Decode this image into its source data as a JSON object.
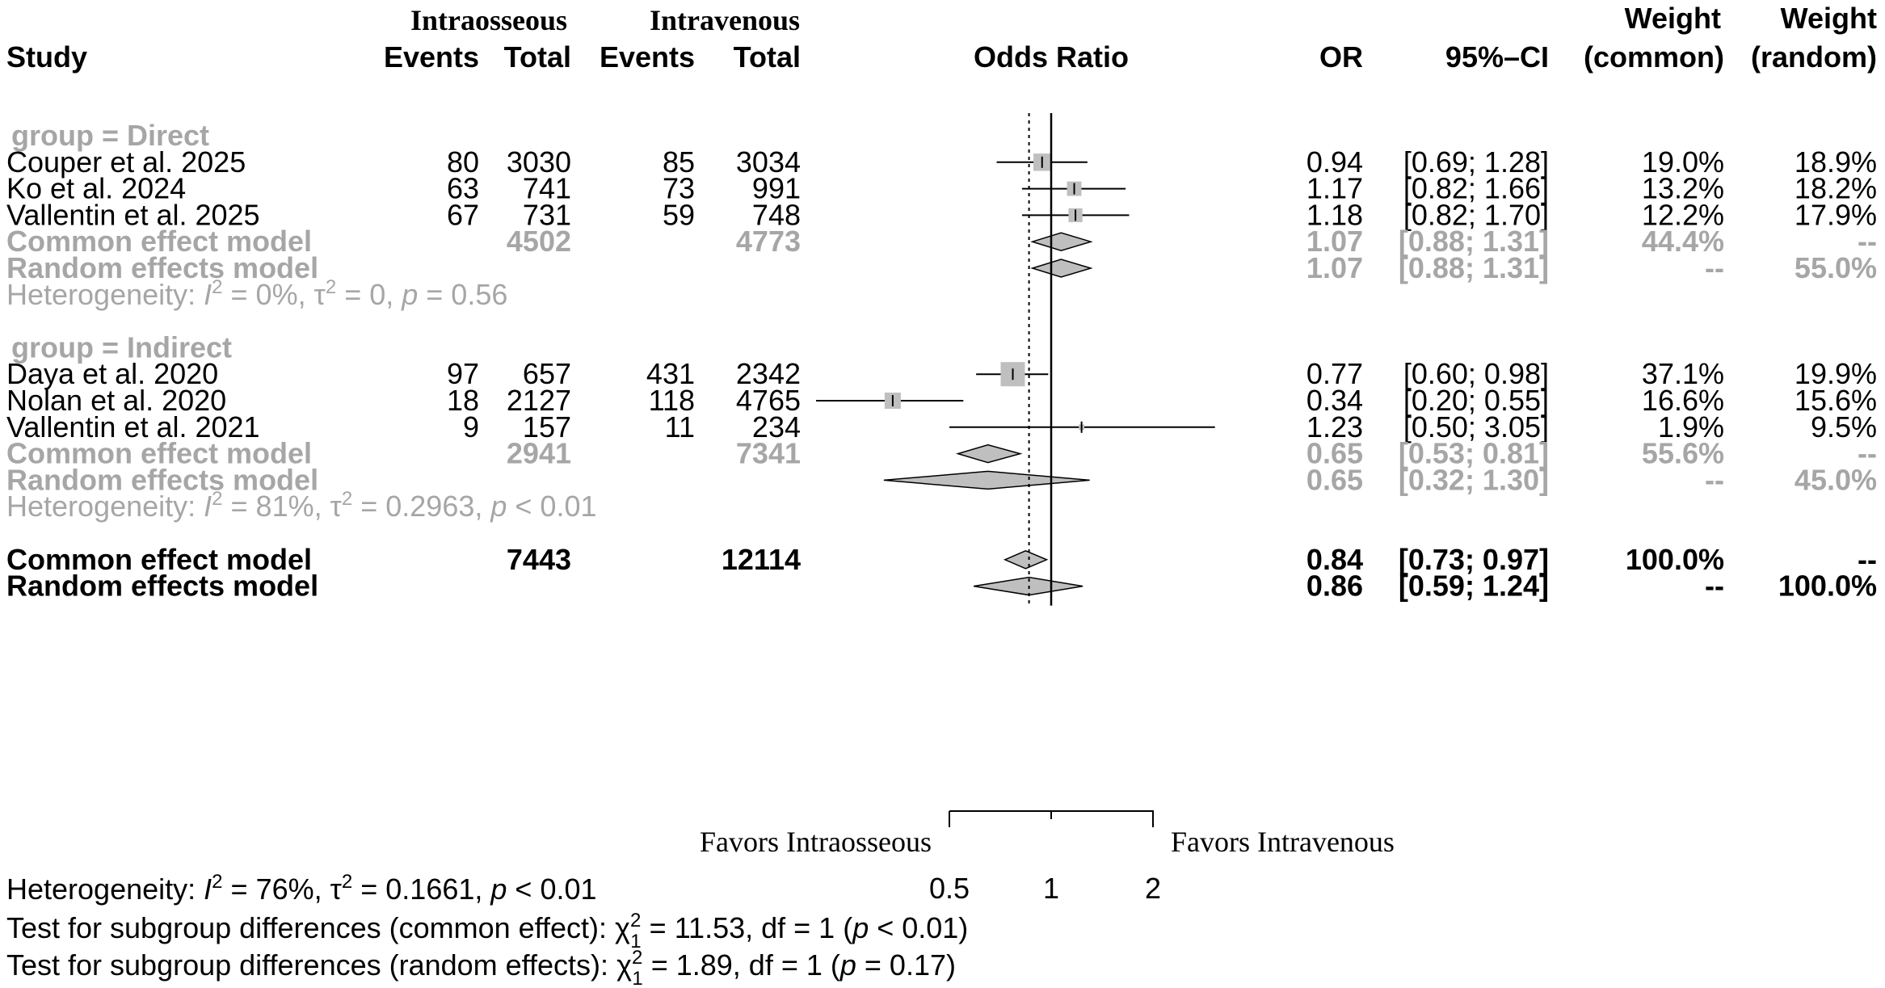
{
  "header": {
    "study": "Study",
    "group1_title": "Intraosseous",
    "group2_title": "Intravenous",
    "events_label": "Events",
    "total_label": "Total",
    "effect_label": "Odds Ratio",
    "or_label": "OR",
    "ci_label": "95%–CI",
    "weight_label": "Weight",
    "weight_common_label": "(common)",
    "weight_random_label": "(random)"
  },
  "chart_data": {
    "type": "forest",
    "measure": "Odds Ratio",
    "x_scale": "log",
    "xlim": [
      0.5,
      2
    ],
    "x_ticks": [
      0.5,
      1,
      2
    ],
    "x_tick_labels": [
      "0.5",
      "1",
      "2"
    ],
    "null_line": 1,
    "overall_random_line": 0.86,
    "favors_left": "Favors Intraosseous",
    "favors_right": "Favors Intravenous",
    "groups": [
      {
        "label": "group  = Direct",
        "studies": [
          {
            "study": "Couper et al. 2025",
            "e1": "80",
            "n1": "3030",
            "e2": "85",
            "n2": "3034",
            "or": 0.94,
            "lo": 0.69,
            "hi": 1.28,
            "or_text": "0.94",
            "ci_text": "[0.69; 1.28]",
            "wc_text": "19.0%",
            "wr_text": "18.9%",
            "wc": 19.0
          },
          {
            "study": "Ko et al. 2024",
            "e1": "63",
            "n1": "741",
            "e2": "73",
            "n2": "991",
            "or": 1.17,
            "lo": 0.82,
            "hi": 1.66,
            "or_text": "1.17",
            "ci_text": "[0.82; 1.66]",
            "wc_text": "13.2%",
            "wr_text": "18.2%",
            "wc": 13.2
          },
          {
            "study": "Vallentin et al. 2025",
            "e1": "67",
            "n1": "731",
            "e2": "59",
            "n2": "748",
            "or": 1.18,
            "lo": 0.82,
            "hi": 1.7,
            "or_text": "1.18",
            "ci_text": "[0.82; 1.70]",
            "wc_text": "12.2%",
            "wr_text": "17.9%",
            "wc": 12.2
          }
        ],
        "common": {
          "label": "Common effect model",
          "n1": "4502",
          "n2": "4773",
          "or": 1.07,
          "lo": 0.88,
          "hi": 1.31,
          "or_text": "1.07",
          "ci_text": "[0.88; 1.31]",
          "wc_text": "44.4%",
          "wr_text": "--"
        },
        "random": {
          "label": "Random effects model",
          "or": 1.07,
          "lo": 0.88,
          "hi": 1.31,
          "or_text": "1.07",
          "ci_text": "[0.88; 1.31]",
          "wc_text": "--",
          "wr_text": "55.0%"
        },
        "heterogeneity": {
          "prefix": "Heterogeneity: ",
          "i2": "= 0%, ",
          "tau2": "= 0, ",
          "p": "= 0.56"
        }
      },
      {
        "label": "group  = Indirect",
        "studies": [
          {
            "study": "Daya et al. 2020",
            "e1": "97",
            "n1": "657",
            "e2": "431",
            "n2": "2342",
            "or": 0.77,
            "lo": 0.6,
            "hi": 0.98,
            "or_text": "0.77",
            "ci_text": "[0.60; 0.98]",
            "wc_text": "37.1%",
            "wr_text": "19.9%",
            "wc": 37.1
          },
          {
            "study": "Nolan et al. 2020",
            "e1": "18",
            "n1": "2127",
            "e2": "118",
            "n2": "4765",
            "or": 0.34,
            "lo": 0.2,
            "hi": 0.55,
            "or_text": "0.34",
            "ci_text": "[0.20; 0.55]",
            "wc_text": "16.6%",
            "wr_text": "15.6%",
            "wc": 16.6
          },
          {
            "study": "Vallentin et al. 2021",
            "e1": "9",
            "n1": "157",
            "e2": "11",
            "n2": "234",
            "or": 1.23,
            "lo": 0.5,
            "hi": 3.05,
            "or_text": "1.23",
            "ci_text": "[0.50; 3.05]",
            "wc_text": "1.9%",
            "wr_text": "9.5%",
            "wc": 1.9
          }
        ],
        "common": {
          "label": "Common effect model",
          "n1": "2941",
          "n2": "7341",
          "or": 0.65,
          "lo": 0.53,
          "hi": 0.81,
          "or_text": "0.65",
          "ci_text": "[0.53; 0.81]",
          "wc_text": "55.6%",
          "wr_text": "--"
        },
        "random": {
          "label": "Random effects model",
          "or": 0.65,
          "lo": 0.32,
          "hi": 1.3,
          "or_text": "0.65",
          "ci_text": "[0.32; 1.30]",
          "wc_text": "--",
          "wr_text": "45.0%"
        },
        "heterogeneity": {
          "prefix": "Heterogeneity: ",
          "i2": "= 81%, ",
          "tau2": "= 0.2963, ",
          "p": "< 0.01"
        }
      }
    ],
    "overall": {
      "common": {
        "label": "Common effect model",
        "n1": "7443",
        "n2": "12114",
        "or": 0.84,
        "lo": 0.73,
        "hi": 0.97,
        "or_text": "0.84",
        "ci_text": "[0.73; 0.97]",
        "wc_text": "100.0%",
        "wr_text": "--"
      },
      "random": {
        "label": "Random effects model",
        "or": 0.86,
        "lo": 0.59,
        "hi": 1.24,
        "or_text": "0.86",
        "ci_text": "[0.59; 1.24]",
        "wc_text": "--",
        "wr_text": "100.0%"
      }
    }
  },
  "footer": {
    "heterogeneity": {
      "prefix": "Heterogeneity: ",
      "i2": "= 76%, ",
      "tau2": "= 0.1661, ",
      "p": "< 0.01"
    },
    "test_common": {
      "prefix": "Test for subgroup differences (common effect): ",
      "stat": "= 11.53, df = 1 (",
      "p": "< 0.01)"
    },
    "test_random": {
      "prefix": "Test for subgroup differences (random effects): ",
      "stat": "= 1.89, df = 1 (",
      "p": "= 0.17)"
    }
  },
  "colors": {
    "text": "#000000",
    "subgroup_text": "#a6a6a6",
    "square_fill": "#bfbfbf",
    "diamond_fill": "#bfbfbf"
  }
}
